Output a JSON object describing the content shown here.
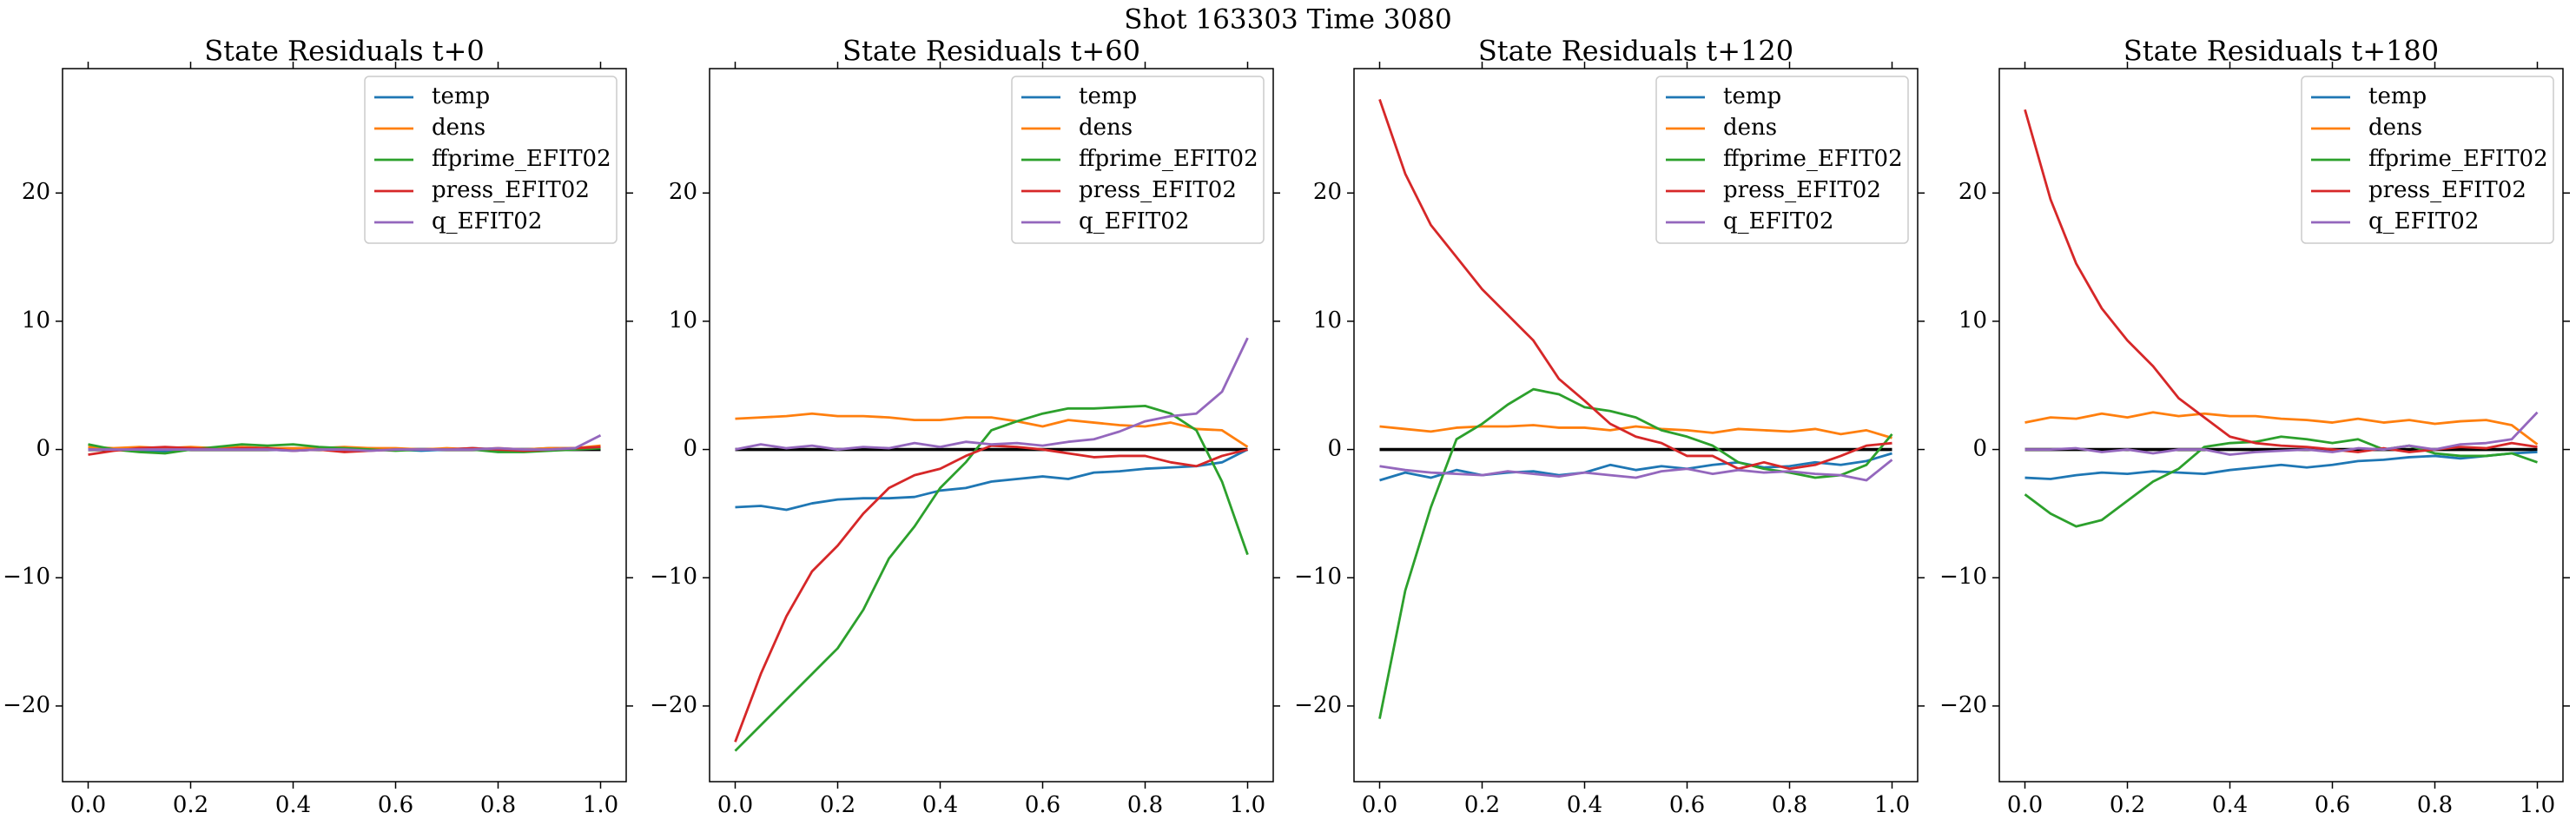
{
  "title": "Shot 163303   Time 3080",
  "chart_data": [
    {
      "type": "line",
      "title": "State Residuals t+0",
      "x": [
        0,
        0.05,
        0.1,
        0.15,
        0.2,
        0.25,
        0.3,
        0.35,
        0.4,
        0.45,
        0.5,
        0.55,
        0.6,
        0.65,
        0.7,
        0.75,
        0.8,
        0.85,
        0.9,
        0.95,
        1
      ],
      "series": [
        {
          "name": "temp",
          "color": "#1f77b4",
          "values": [
            0.1,
            0,
            -0.1,
            -0.2,
            0,
            0.1,
            0,
            0,
            -0.1,
            0,
            0,
            0.1,
            0,
            -0.1,
            0,
            0.1,
            0,
            0,
            0.1,
            0.1,
            0.2
          ]
        },
        {
          "name": "dens",
          "color": "#ff7f0e",
          "values": [
            0.2,
            0.1,
            0.2,
            0.1,
            0.2,
            0.1,
            0.2,
            0.1,
            0.1,
            0.1,
            0.2,
            0.1,
            0.1,
            0,
            0.1,
            0,
            0.1,
            0,
            0.1,
            0.1,
            0.3
          ]
        },
        {
          "name": "ffprime_EFIT02",
          "color": "#2ca02c",
          "values": [
            0.4,
            0,
            -0.2,
            -0.3,
            0,
            0.2,
            0.4,
            0.3,
            0.4,
            0.2,
            0.1,
            0,
            -0.1,
            0,
            0,
            0,
            -0.2,
            -0.2,
            -0.1,
            0,
            0.1
          ]
        },
        {
          "name": "press_EFIT02",
          "color": "#d62728",
          "values": [
            -0.4,
            -0.1,
            0.1,
            0.2,
            0.1,
            0,
            0.1,
            0.1,
            -0.1,
            0,
            -0.2,
            -0.1,
            0,
            0,
            0,
            0.1,
            0,
            -0.1,
            0,
            0.1,
            0.2
          ]
        },
        {
          "name": "q_EFIT02",
          "color": "#9467bd",
          "values": [
            0,
            0,
            0,
            0,
            0,
            0,
            0,
            0,
            -0.1,
            0,
            0,
            -0.1,
            0,
            0,
            0,
            0,
            0.1,
            0,
            0,
            0.1,
            1.1
          ]
        }
      ],
      "hline": 0,
      "xlim": [
        -0.05,
        1.05
      ],
      "ylim": [
        -25.9,
        29.7
      ],
      "xticks": [
        {
          "value": 0,
          "label": "0.0"
        },
        0.2,
        0.4,
        0.6,
        0.8,
        {
          "value": 1,
          "label": "1.0"
        }
      ],
      "yticks": [
        {
          "value": -20,
          "label": "−20"
        },
        {
          "value": -10,
          "label": "−10"
        },
        0,
        10,
        20
      ],
      "legend": "upper right"
    },
    {
      "type": "line",
      "title": "State Residuals t+60",
      "x": [
        0,
        0.05,
        0.1,
        0.15,
        0.2,
        0.25,
        0.3,
        0.35,
        0.4,
        0.45,
        0.5,
        0.55,
        0.6,
        0.65,
        0.7,
        0.75,
        0.8,
        0.85,
        0.9,
        0.95,
        1
      ],
      "series": [
        {
          "name": "temp",
          "color": "#1f77b4",
          "values": [
            -4.5,
            -4.4,
            -4.7,
            -4.2,
            -3.9,
            -3.8,
            -3.8,
            -3.7,
            -3.2,
            -3.0,
            -2.5,
            -2.3,
            -2.1,
            -2.3,
            -1.8,
            -1.7,
            -1.5,
            -1.4,
            -1.3,
            -1.0,
            0
          ]
        },
        {
          "name": "dens",
          "color": "#ff7f0e",
          "values": [
            2.4,
            2.5,
            2.6,
            2.8,
            2.6,
            2.6,
            2.5,
            2.3,
            2.3,
            2.5,
            2.5,
            2.2,
            1.8,
            2.3,
            2.1,
            1.9,
            1.8,
            2.1,
            1.6,
            1.5,
            0.2
          ]
        },
        {
          "name": "ffprime_EFIT02",
          "color": "#2ca02c",
          "values": [
            -23.5,
            -21.5,
            -19.5,
            -17.5,
            -15.5,
            -12.5,
            -8.5,
            -6.0,
            -3.0,
            -1.0,
            1.5,
            2.2,
            2.8,
            3.2,
            3.2,
            3.3,
            3.4,
            2.8,
            1.5,
            -2.5,
            -8.2
          ]
        },
        {
          "name": "press_EFIT02",
          "color": "#d62728",
          "values": [
            -22.8,
            -17.5,
            -13.0,
            -9.5,
            -7.5,
            -5.0,
            -3.0,
            -2.0,
            -1.5,
            -0.5,
            0.3,
            0.2,
            0,
            -0.3,
            -0.6,
            -0.5,
            -0.5,
            -1.0,
            -1.3,
            -0.5,
            0
          ]
        },
        {
          "name": "q_EFIT02",
          "color": "#9467bd",
          "values": [
            0,
            0.4,
            0.1,
            0.3,
            0,
            0.2,
            0.1,
            0.5,
            0.2,
            0.6,
            0.4,
            0.5,
            0.3,
            0.6,
            0.8,
            1.4,
            2.2,
            2.6,
            2.8,
            4.5,
            8.7
          ]
        }
      ],
      "hline": 0,
      "xlim": [
        -0.05,
        1.05
      ],
      "ylim": [
        -25.9,
        29.7
      ],
      "xticks": [
        {
          "value": 0,
          "label": "0.0"
        },
        0.2,
        0.4,
        0.6,
        0.8,
        {
          "value": 1,
          "label": "1.0"
        }
      ],
      "yticks": [
        {
          "value": -20,
          "label": "−20"
        },
        {
          "value": -10,
          "label": "−10"
        },
        0,
        10,
        20
      ],
      "legend": "upper right"
    },
    {
      "type": "line",
      "title": "State Residuals t+120",
      "x": [
        0,
        0.05,
        0.1,
        0.15,
        0.2,
        0.25,
        0.3,
        0.35,
        0.4,
        0.45,
        0.5,
        0.55,
        0.6,
        0.65,
        0.7,
        0.75,
        0.8,
        0.85,
        0.9,
        0.95,
        1
      ],
      "series": [
        {
          "name": "temp",
          "color": "#1f77b4",
          "values": [
            -2.4,
            -1.8,
            -2.2,
            -1.6,
            -2.0,
            -1.8,
            -1.7,
            -2.0,
            -1.8,
            -1.2,
            -1.6,
            -1.3,
            -1.5,
            -1.2,
            -1.0,
            -1.4,
            -1.3,
            -1.0,
            -1.2,
            -0.9,
            -0.3
          ]
        },
        {
          "name": "dens",
          "color": "#ff7f0e",
          "values": [
            1.8,
            1.6,
            1.4,
            1.7,
            1.8,
            1.8,
            1.9,
            1.7,
            1.7,
            1.5,
            1.8,
            1.6,
            1.5,
            1.3,
            1.6,
            1.5,
            1.4,
            1.6,
            1.2,
            1.5,
            0.9
          ]
        },
        {
          "name": "ffprime_EFIT02",
          "color": "#2ca02c",
          "values": [
            -21.0,
            -11.0,
            -4.5,
            0.8,
            2.0,
            3.5,
            4.7,
            4.3,
            3.3,
            3.0,
            2.5,
            1.5,
            1.0,
            0.3,
            -1.0,
            -1.5,
            -1.8,
            -2.2,
            -2.0,
            -1.2,
            1.2
          ]
        },
        {
          "name": "press_EFIT02",
          "color": "#d62728",
          "values": [
            27.3,
            21.5,
            17.5,
            15.0,
            12.5,
            10.5,
            8.5,
            5.5,
            3.8,
            2.0,
            1.0,
            0.5,
            -0.5,
            -0.5,
            -1.5,
            -1.0,
            -1.5,
            -1.2,
            -0.5,
            0.3,
            0.5
          ]
        },
        {
          "name": "q_EFIT02",
          "color": "#9467bd",
          "values": [
            -1.3,
            -1.6,
            -1.8,
            -1.9,
            -2.0,
            -1.7,
            -1.9,
            -2.1,
            -1.8,
            -2.0,
            -2.2,
            -1.7,
            -1.5,
            -1.9,
            -1.6,
            -1.8,
            -1.7,
            -1.9,
            -2.0,
            -2.4,
            -0.8
          ]
        }
      ],
      "hline": 0,
      "xlim": [
        -0.05,
        1.05
      ],
      "ylim": [
        -25.9,
        29.7
      ],
      "xticks": [
        {
          "value": 0,
          "label": "0.0"
        },
        0.2,
        0.4,
        0.6,
        0.8,
        {
          "value": 1,
          "label": "1.0"
        }
      ],
      "yticks": [
        {
          "value": -20,
          "label": "−20"
        },
        {
          "value": -10,
          "label": "−10"
        },
        0,
        10,
        20
      ],
      "legend": "upper right"
    },
    {
      "type": "line",
      "title": "State Residuals t+180",
      "x": [
        0,
        0.05,
        0.1,
        0.15,
        0.2,
        0.25,
        0.3,
        0.35,
        0.4,
        0.45,
        0.5,
        0.55,
        0.6,
        0.65,
        0.7,
        0.75,
        0.8,
        0.85,
        0.9,
        0.95,
        1
      ],
      "series": [
        {
          "name": "temp",
          "color": "#1f77b4",
          "values": [
            -2.2,
            -2.3,
            -2.0,
            -1.8,
            -1.9,
            -1.7,
            -1.8,
            -1.9,
            -1.6,
            -1.4,
            -1.2,
            -1.4,
            -1.2,
            -0.9,
            -0.8,
            -0.6,
            -0.5,
            -0.7,
            -0.5,
            -0.3,
            -0.2
          ]
        },
        {
          "name": "dens",
          "color": "#ff7f0e",
          "values": [
            2.1,
            2.5,
            2.4,
            2.8,
            2.5,
            2.9,
            2.6,
            2.8,
            2.6,
            2.6,
            2.4,
            2.3,
            2.1,
            2.4,
            2.1,
            2.3,
            2.0,
            2.2,
            2.3,
            1.9,
            0.4
          ]
        },
        {
          "name": "ffprime_EFIT02",
          "color": "#2ca02c",
          "values": [
            -3.5,
            -5.0,
            -6.0,
            -5.5,
            -4.0,
            -2.5,
            -1.5,
            0.2,
            0.5,
            0.6,
            1.0,
            0.8,
            0.5,
            0.8,
            0.0,
            0.3,
            -0.3,
            -0.5,
            -0.5,
            -0.3,
            -1.0
          ]
        },
        {
          "name": "press_EFIT02",
          "color": "#d62728",
          "values": [
            26.5,
            19.5,
            14.5,
            11.0,
            8.5,
            6.5,
            4.0,
            2.5,
            1.0,
            0.5,
            0.3,
            0.2,
            0,
            -0.2,
            0.1,
            -0.2,
            0,
            0.2,
            0.1,
            0.5,
            0.2
          ]
        },
        {
          "name": "q_EFIT02",
          "color": "#9467bd",
          "values": [
            0,
            0,
            0.1,
            -0.2,
            0,
            -0.3,
            0,
            0,
            -0.4,
            -0.2,
            -0.1,
            0,
            -0.2,
            0.1,
            0,
            0.3,
            0,
            0.4,
            0.5,
            0.8,
            2.9
          ]
        }
      ],
      "hline": 0,
      "xlim": [
        -0.05,
        1.05
      ],
      "ylim": [
        -25.9,
        29.7
      ],
      "xticks": [
        {
          "value": 0,
          "label": "0.0"
        },
        0.2,
        0.4,
        0.6,
        0.8,
        {
          "value": 1,
          "label": "1.0"
        }
      ],
      "yticks": [
        {
          "value": -20,
          "label": "−20"
        },
        {
          "value": -10,
          "label": "−10"
        },
        0,
        10,
        20
      ],
      "legend": "upper right"
    }
  ]
}
